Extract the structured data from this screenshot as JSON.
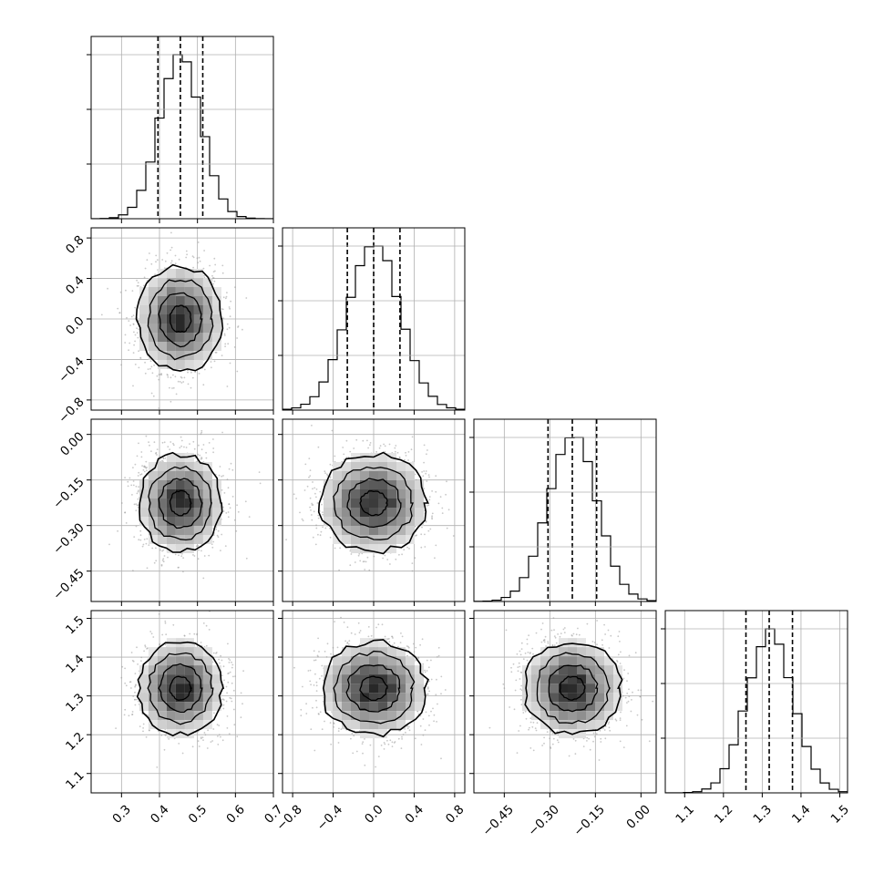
{
  "chart_data": {
    "type": "corner",
    "variables": [
      {
        "range": [
          0.22,
          0.7
        ],
        "ticks": [
          0.3,
          0.4,
          0.5,
          0.6,
          0.7
        ],
        "tick_labels": [
          "0.3",
          "0.4",
          "0.5",
          "0.6",
          "0.7"
        ],
        "mean": 0.455,
        "sigma": 0.055,
        "quantiles": [
          0.396,
          0.455,
          0.514
        ]
      },
      {
        "range": [
          -0.9,
          0.9
        ],
        "ticks": [
          -0.8,
          -0.4,
          0.0,
          0.4,
          0.8
        ],
        "tick_labels": [
          "−0.8",
          "−0.4",
          "0.0",
          "0.4",
          "0.8"
        ],
        "mean": 0.0,
        "sigma": 0.26,
        "quantiles": [
          -0.26,
          0.0,
          0.26
        ]
      },
      {
        "range": [
          -0.55,
          0.05
        ],
        "ticks": [
          -0.45,
          -0.3,
          -0.15,
          0.0
        ],
        "tick_labels": [
          "−0.45",
          "−0.30",
          "−0.15",
          "0.00"
        ],
        "mean": -0.226,
        "sigma": 0.08,
        "quantiles": [
          -0.306,
          -0.226,
          -0.146
        ]
      },
      {
        "range": [
          1.05,
          1.52
        ],
        "ticks": [
          1.1,
          1.2,
          1.3,
          1.4,
          1.5
        ],
        "tick_labels": [
          "1.1",
          "1.2",
          "1.3",
          "1.4",
          "1.5"
        ],
        "mean": 1.32,
        "sigma": 0.06,
        "quantiles": [
          1.258,
          1.318,
          1.378
        ]
      }
    ],
    "grid": true,
    "histogram_bins": 20,
    "contour_levels_sigma": [
      0.5,
      1.0,
      1.5,
      2.0
    ],
    "colors": {
      "line": "#000000",
      "grid": "#b0b0b0",
      "points": "#9a9a9a"
    }
  }
}
